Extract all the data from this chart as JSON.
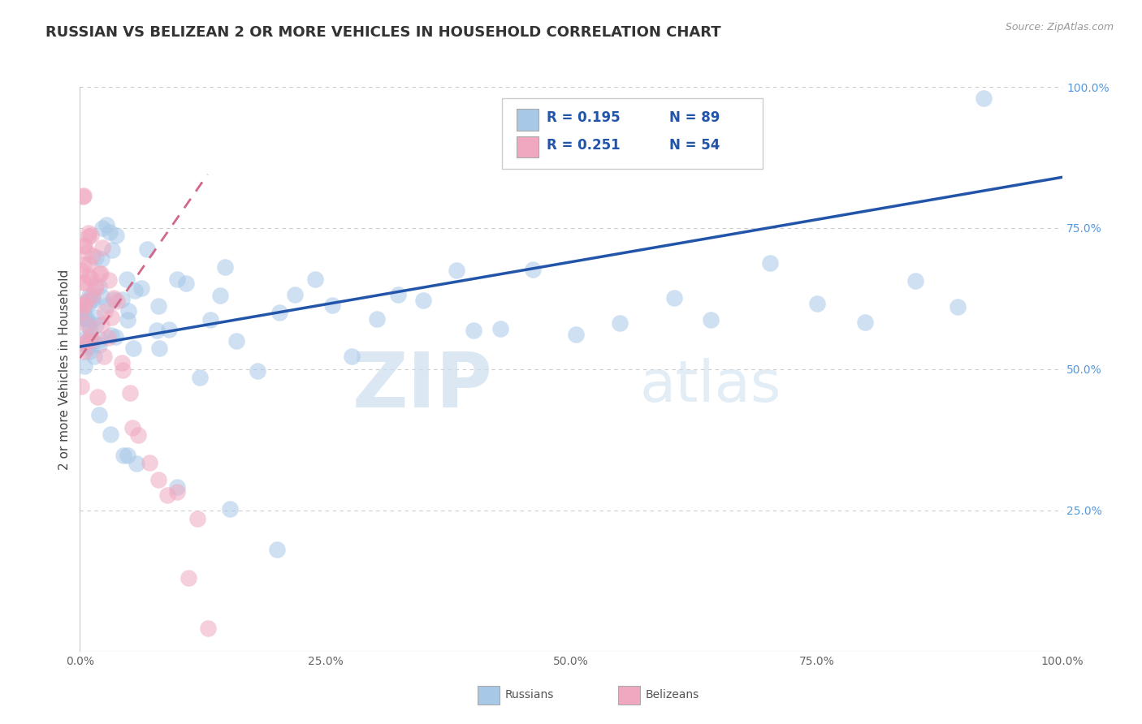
{
  "title": "RUSSIAN VS BELIZEAN 2 OR MORE VEHICLES IN HOUSEHOLD CORRELATION CHART",
  "source_text": "Source: ZipAtlas.com",
  "ylabel": "2 or more Vehicles in Household",
  "watermark_zip": "ZIP",
  "watermark_atlas": "atlas",
  "legend_r1": "R = 0.195",
  "legend_n1": "N = 89",
  "legend_r2": "R = 0.251",
  "legend_n2": "N = 54",
  "russian_color": "#a8c8e8",
  "belizean_color": "#f0a8c0",
  "russian_line_color": "#2255aa",
  "belizean_line_color": "#d06888",
  "legend_text_color": "#2255aa",
  "right_tick_color": "#5599dd",
  "xlim": [
    0.0,
    1.0
  ],
  "ylim": [
    0.0,
    1.0
  ],
  "title_fontsize": 13,
  "xticks": [
    0.0,
    0.25,
    0.5,
    0.75,
    1.0
  ],
  "xtick_labels": [
    "0.0%",
    "25.0%",
    "50.0%",
    "75.0%",
    "100.0%"
  ],
  "yticks_right": [
    0.25,
    0.5,
    0.75,
    1.0
  ],
  "ytick_labels_right": [
    "25.0%",
    "50.0%",
    "75.0%",
    "100.0%"
  ],
  "rus_x": [
    0.002,
    0.003,
    0.004,
    0.005,
    0.005,
    0.006,
    0.007,
    0.007,
    0.008,
    0.008,
    0.009,
    0.009,
    0.01,
    0.01,
    0.01,
    0.011,
    0.012,
    0.012,
    0.013,
    0.014,
    0.015,
    0.015,
    0.016,
    0.017,
    0.018,
    0.019,
    0.02,
    0.021,
    0.022,
    0.023,
    0.025,
    0.027,
    0.028,
    0.03,
    0.032,
    0.034,
    0.036,
    0.038,
    0.04,
    0.042,
    0.045,
    0.048,
    0.05,
    0.055,
    0.06,
    0.065,
    0.07,
    0.075,
    0.08,
    0.085,
    0.09,
    0.1,
    0.11,
    0.12,
    0.13,
    0.14,
    0.15,
    0.16,
    0.18,
    0.2,
    0.22,
    0.24,
    0.26,
    0.28,
    0.3,
    0.32,
    0.35,
    0.38,
    0.4,
    0.43,
    0.46,
    0.5,
    0.55,
    0.6,
    0.65,
    0.7,
    0.75,
    0.8,
    0.85,
    0.9,
    0.02,
    0.03,
    0.04,
    0.05,
    0.06,
    0.1,
    0.15,
    0.2,
    0.92
  ],
  "rus_y": [
    0.57,
    0.6,
    0.55,
    0.58,
    0.62,
    0.57,
    0.6,
    0.52,
    0.58,
    0.63,
    0.55,
    0.6,
    0.57,
    0.52,
    0.65,
    0.58,
    0.6,
    0.55,
    0.62,
    0.57,
    0.65,
    0.6,
    0.58,
    0.62,
    0.6,
    0.55,
    0.58,
    0.63,
    0.6,
    0.65,
    0.72,
    0.68,
    0.65,
    0.7,
    0.68,
    0.72,
    0.65,
    0.6,
    0.58,
    0.62,
    0.68,
    0.65,
    0.6,
    0.58,
    0.62,
    0.68,
    0.65,
    0.6,
    0.55,
    0.58,
    0.62,
    0.65,
    0.6,
    0.55,
    0.58,
    0.62,
    0.65,
    0.6,
    0.55,
    0.58,
    0.62,
    0.65,
    0.6,
    0.55,
    0.58,
    0.62,
    0.65,
    0.6,
    0.55,
    0.62,
    0.65,
    0.6,
    0.55,
    0.58,
    0.62,
    0.65,
    0.6,
    0.55,
    0.58,
    0.62,
    0.45,
    0.42,
    0.38,
    0.35,
    0.32,
    0.28,
    0.22,
    0.18,
    0.98
  ],
  "bel_x": [
    0.001,
    0.001,
    0.002,
    0.002,
    0.002,
    0.003,
    0.003,
    0.003,
    0.004,
    0.004,
    0.005,
    0.005,
    0.005,
    0.006,
    0.006,
    0.007,
    0.007,
    0.008,
    0.008,
    0.009,
    0.009,
    0.01,
    0.01,
    0.011,
    0.012,
    0.012,
    0.013,
    0.014,
    0.015,
    0.016,
    0.017,
    0.018,
    0.019,
    0.02,
    0.022,
    0.024,
    0.026,
    0.028,
    0.03,
    0.032,
    0.035,
    0.038,
    0.04,
    0.045,
    0.05,
    0.055,
    0.06,
    0.07,
    0.08,
    0.09,
    0.1,
    0.11,
    0.12,
    0.13
  ],
  "bel_y": [
    0.6,
    0.57,
    0.72,
    0.65,
    0.55,
    0.8,
    0.68,
    0.58,
    0.75,
    0.62,
    0.7,
    0.65,
    0.58,
    0.72,
    0.6,
    0.68,
    0.55,
    0.72,
    0.6,
    0.65,
    0.58,
    0.7,
    0.62,
    0.68,
    0.65,
    0.58,
    0.72,
    0.6,
    0.68,
    0.65,
    0.58,
    0.62,
    0.68,
    0.72,
    0.65,
    0.58,
    0.62,
    0.55,
    0.6,
    0.65,
    0.58,
    0.62,
    0.55,
    0.48,
    0.45,
    0.42,
    0.38,
    0.35,
    0.3,
    0.25,
    0.22,
    0.18,
    0.15,
    0.12
  ]
}
